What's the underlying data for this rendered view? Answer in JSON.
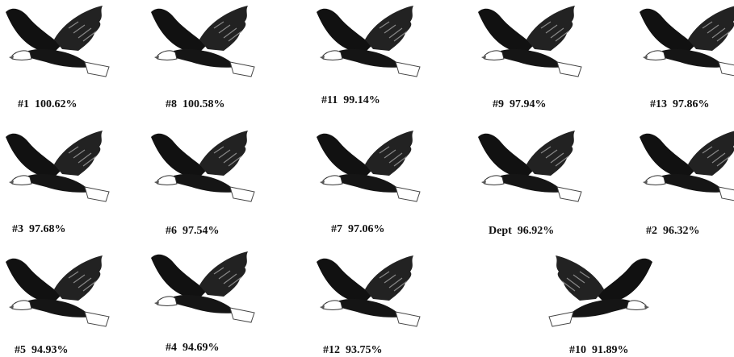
{
  "items": [
    {
      "label": "#1  100.62%"
    },
    {
      "label": "#8  100.58%"
    },
    {
      "label": "#11  99.14%"
    },
    {
      "label": "#9  97.94%"
    },
    {
      "label": "#13  97.86%"
    },
    {
      "label": "#3  97.68%"
    },
    {
      "label": "#6  97.54%"
    },
    {
      "label": "#7  97.06%"
    },
    {
      "label": "Dept  96.92%"
    },
    {
      "label": "#2  96.32%"
    },
    {
      "label": "#5  94.93%"
    },
    {
      "label": "#4  94.69%"
    },
    {
      "label": "#12  93.75%"
    },
    {
      "label": "#10  91.89%"
    }
  ]
}
